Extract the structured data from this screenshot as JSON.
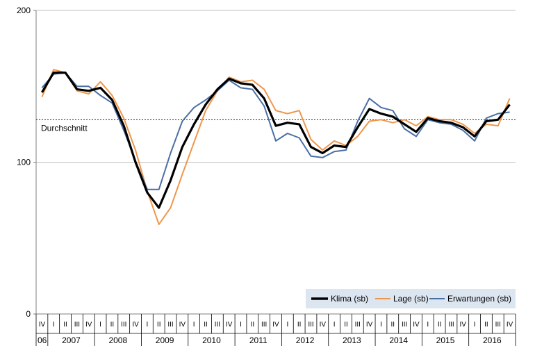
{
  "chart_data": {
    "type": "line",
    "ylim": [
      0,
      200
    ],
    "yticks": [
      "0",
      "100",
      "200"
    ],
    "reference_line": {
      "label": "Durchschnitt",
      "value": 128
    },
    "x": [
      "2006 IV",
      "2007 I",
      "2007 II",
      "2007 III",
      "2007 IV",
      "2008 I",
      "2008 II",
      "2008 III",
      "2008 IV",
      "2009 I",
      "2009 II",
      "2009 III",
      "2009 IV",
      "2010 I",
      "2010 II",
      "2010 III",
      "2010 IV",
      "2011 I",
      "2011 II",
      "2011 III",
      "2011 IV",
      "2012 I",
      "2012 II",
      "2012 III",
      "2012 IV",
      "2013 I",
      "2013 II",
      "2013 III",
      "2013 IV",
      "2014 I",
      "2014 II",
      "2014 III",
      "2014 IV",
      "2015 I",
      "2015 II",
      "2015 III",
      "2015 IV",
      "2016 I",
      "2016 II",
      "2016 III",
      "2016 IV"
    ],
    "quarter_labels": [
      "IV",
      "I",
      "II",
      "III",
      "IV",
      "I",
      "II",
      "III",
      "IV",
      "I",
      "II",
      "III",
      "IV",
      "I",
      "II",
      "III",
      "IV",
      "I",
      "II",
      "III",
      "IV",
      "I",
      "II",
      "III",
      "IV",
      "I",
      "II",
      "III",
      "IV",
      "I",
      "II",
      "III",
      "IV",
      "I",
      "II",
      "III",
      "IV",
      "I",
      "II",
      "III",
      "IV"
    ],
    "year_labels": [
      {
        "label": "06",
        "start": 0,
        "end": 0
      },
      {
        "label": "2007",
        "start": 1,
        "end": 4
      },
      {
        "label": "2008",
        "start": 5,
        "end": 8
      },
      {
        "label": "2009",
        "start": 9,
        "end": 12
      },
      {
        "label": "2010",
        "start": 13,
        "end": 16
      },
      {
        "label": "2011",
        "start": 17,
        "end": 20
      },
      {
        "label": "2012",
        "start": 21,
        "end": 24
      },
      {
        "label": "2013",
        "start": 25,
        "end": 28
      },
      {
        "label": "2014",
        "start": 29,
        "end": 32
      },
      {
        "label": "2015",
        "start": 33,
        "end": 36
      },
      {
        "label": "2016",
        "start": 37,
        "end": 40
      }
    ],
    "legend_position": "bottom-right",
    "series": [
      {
        "name": "Klima (sb)",
        "color": "#000000",
        "values": [
          146,
          159,
          159,
          148,
          147,
          149,
          141,
          124,
          100,
          80,
          70,
          88,
          110,
          125,
          138,
          148,
          155,
          152,
          151,
          142,
          124,
          126,
          125,
          110,
          106,
          111,
          110,
          123,
          135,
          132,
          130,
          125,
          120,
          129,
          127,
          126,
          123,
          117,
          127,
          128,
          138
        ]
      },
      {
        "name": "Lage (sb)",
        "color": "#f0964a",
        "values": [
          143,
          161,
          159,
          147,
          145,
          153,
          144,
          129,
          108,
          81,
          59,
          70,
          92,
          113,
          134,
          147,
          156,
          153,
          154,
          148,
          134,
          132,
          134,
          115,
          108,
          114,
          111,
          117,
          127,
          128,
          126,
          128,
          124,
          130,
          128,
          128,
          125,
          119,
          125,
          124,
          142
        ]
      },
      {
        "name": "Erwartungen (sb)",
        "color": "#4a6fa5",
        "values": [
          149,
          158,
          159,
          150,
          150,
          144,
          139,
          121,
          101,
          82,
          82,
          106,
          127,
          136,
          141,
          147,
          154,
          149,
          148,
          137,
          114,
          119,
          116,
          104,
          103,
          107,
          108,
          127,
          142,
          136,
          134,
          122,
          117,
          128,
          126,
          125,
          121,
          114,
          129,
          132,
          133
        ]
      }
    ]
  }
}
